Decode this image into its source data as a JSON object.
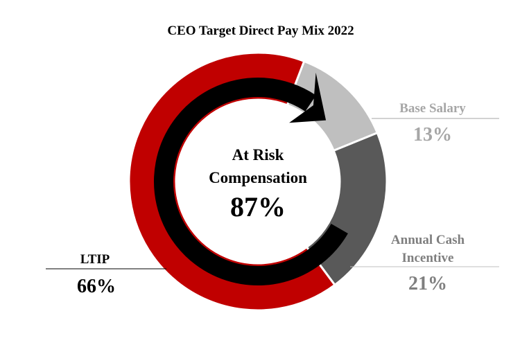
{
  "chart_data": {
    "type": "pie",
    "title": "CEO Target Direct Pay Mix 2022",
    "categories": [
      "Base Salary",
      "Annual Cash Incentive",
      "LTIP"
    ],
    "values": [
      13,
      21,
      66
    ],
    "value_labels": [
      "13%",
      "21%",
      "66%"
    ],
    "colors": [
      "#bfbfbf",
      "#595959",
      "#c00000"
    ],
    "label_colors": [
      "#a6a6a6",
      "#7f7f7f",
      "#000000"
    ],
    "center": {
      "line1": "At Risk",
      "line2": "Compensation",
      "value": "87%"
    },
    "legend": "none"
  },
  "labels": {
    "base_salary": {
      "name": "Base Salary",
      "value": "13%"
    },
    "annual_cash": {
      "name_line1": "Annual Cash",
      "name_line2": "Incentive",
      "value": "21%"
    },
    "ltip": {
      "name": "LTIP",
      "value": "66%"
    }
  },
  "arrow_color": "#000000"
}
